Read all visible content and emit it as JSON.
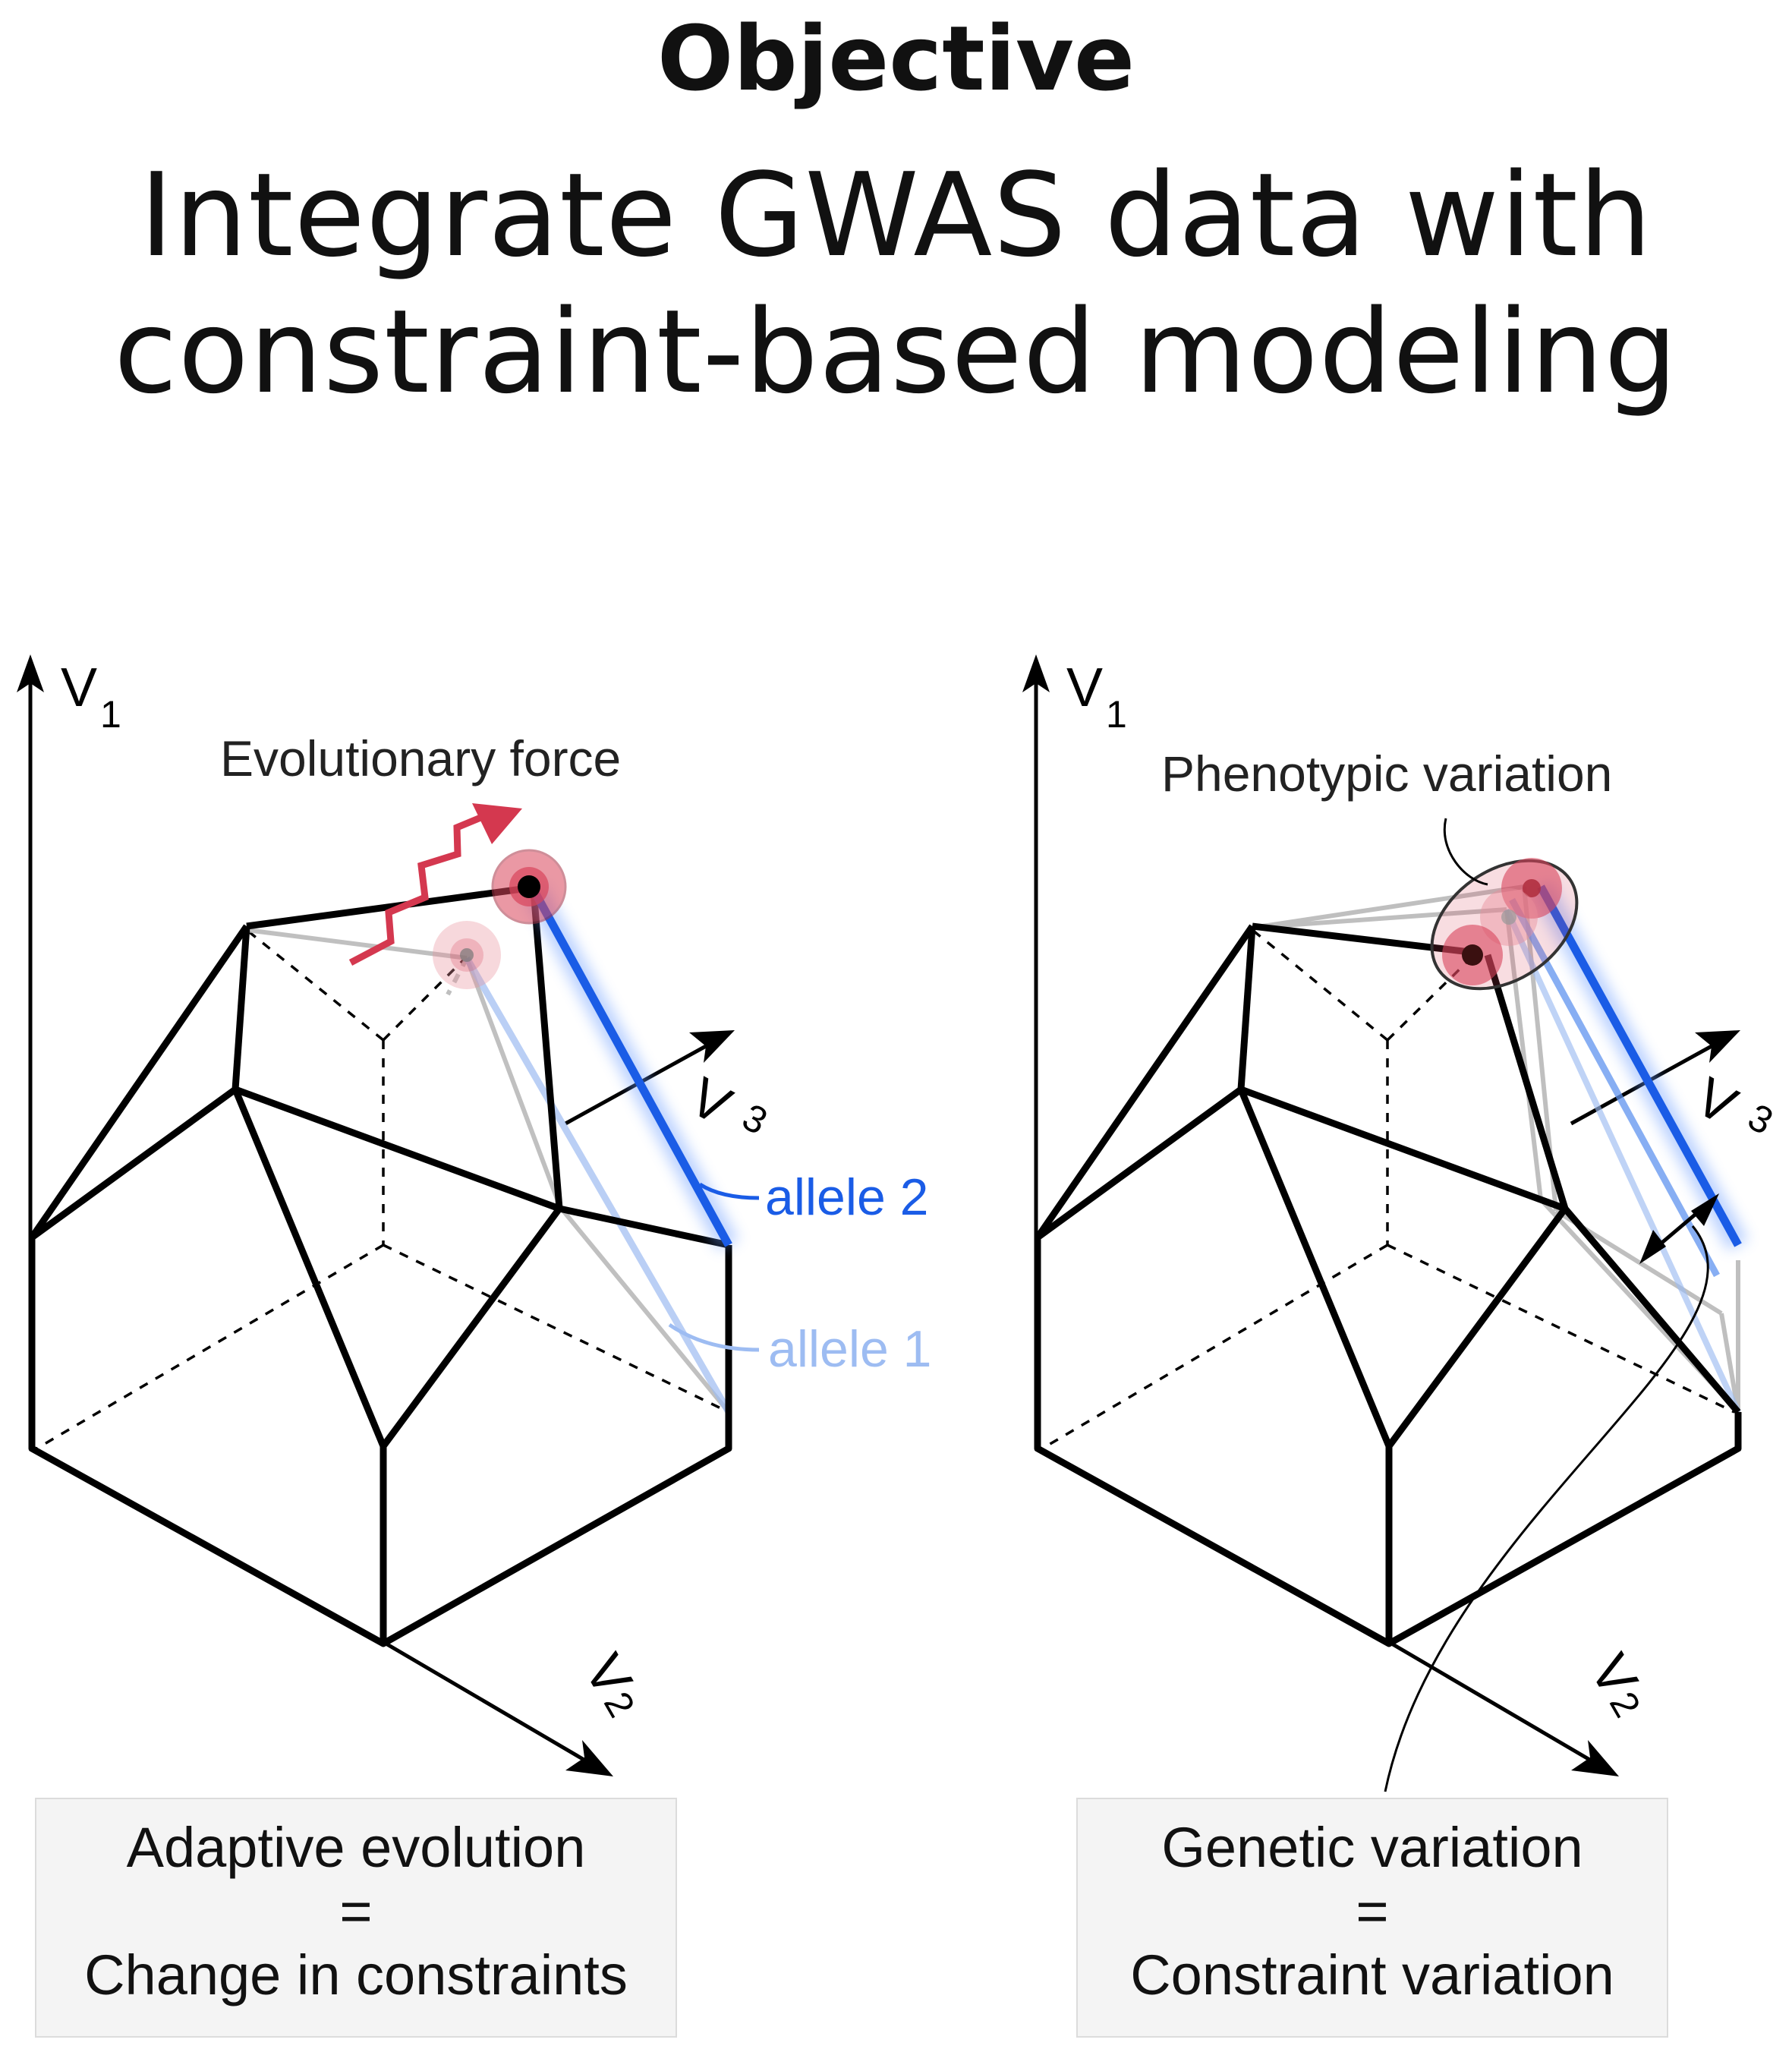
{
  "header": {
    "label": "Objective",
    "title_line1": "Integrate GWAS data with",
    "title_line2": "constraint-based modeling"
  },
  "axes": {
    "v1": "V",
    "v1_sub": "1",
    "v2": "V",
    "v2_sub": "2",
    "v3": "V",
    "v3_sub": "3"
  },
  "left_panel": {
    "annotation": "Evolutionary force",
    "allele2_label": "allele 2",
    "allele1_label": "allele 1",
    "caption": {
      "line1": "Adaptive evolution",
      "line2": "=",
      "line3": "Change in constraints"
    }
  },
  "right_panel": {
    "annotation": "Phenotypic variation",
    "caption": {
      "line1": "Genetic variation",
      "line2": "=",
      "line3": "Constraint variation"
    }
  },
  "colors": {
    "allele2": "#1a5ce6",
    "allele1": "#9dbcf2",
    "force_arrow": "#d4384f",
    "point_fill": "#d9455b",
    "edge": "#000000",
    "ghost_edge": "#b5b5b5"
  }
}
